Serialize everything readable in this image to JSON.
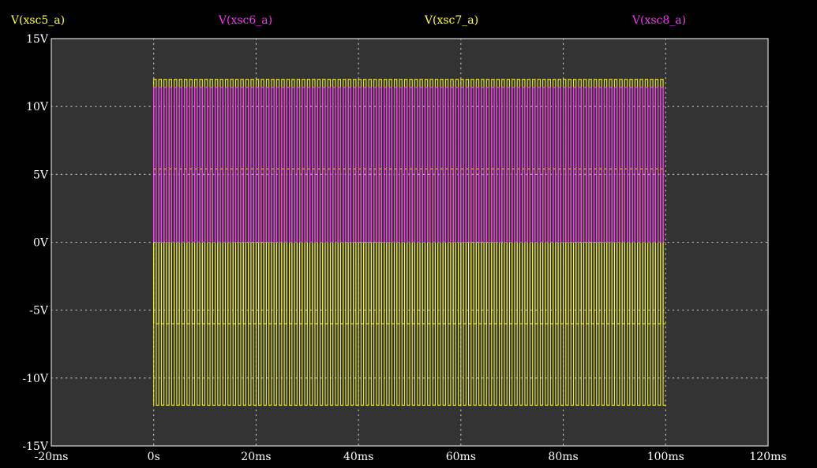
{
  "colors": {
    "background": "#000000",
    "plot_background": "#333333",
    "frame": "#d8d8d8",
    "grid": "#cfcfcf",
    "tick_text": "#ffffff",
    "yellow": "#ffff33",
    "magenta": "#ff33ff",
    "orange_blend": "#f0a878",
    "pink_blend": "#ff66cc"
  },
  "chart_data": {
    "type": "line",
    "title": "",
    "xlabel": "",
    "ylabel": "",
    "xlim": [
      -20,
      120
    ],
    "ylim": [
      -15,
      15
    ],
    "x_unit": "ms",
    "y_unit": "V",
    "grid": true,
    "legend_placement": "top",
    "x_ticks": [
      "-20ms",
      "0s",
      "20ms",
      "40ms",
      "60ms",
      "80ms",
      "100ms",
      "120ms"
    ],
    "x_tick_values": [
      -20,
      0,
      20,
      40,
      60,
      80,
      100,
      120
    ],
    "y_ticks": [
      "15V",
      "10V",
      "5V",
      "0V",
      "-5V",
      "-10V",
      "-15V"
    ],
    "y_tick_values": [
      15,
      10,
      5,
      0,
      -5,
      -10,
      -15
    ],
    "series": [
      {
        "name": "V(xsc5_a)",
        "color": "#ffff33",
        "waveform": "square",
        "t_start": 0,
        "t_end": 100,
        "period": 1,
        "high": 12,
        "low": -12
      },
      {
        "name": "V(xsc6_a)",
        "color": "#ff33ff",
        "waveform": "square",
        "t_start": 0,
        "t_end": 100,
        "period": 1,
        "high": 11.4,
        "low": 0
      },
      {
        "name": "V(xsc7_a)",
        "color": "#ffff33",
        "waveform": "square",
        "t_start": 0,
        "t_end": 100,
        "period": 1,
        "high": 5.4,
        "low": -6
      },
      {
        "name": "V(xsc8_a)",
        "color": "#ff33ff",
        "waveform": "square",
        "t_start": 0,
        "t_end": 100,
        "period": 1,
        "high": 11.4,
        "low": 0
      }
    ]
  }
}
